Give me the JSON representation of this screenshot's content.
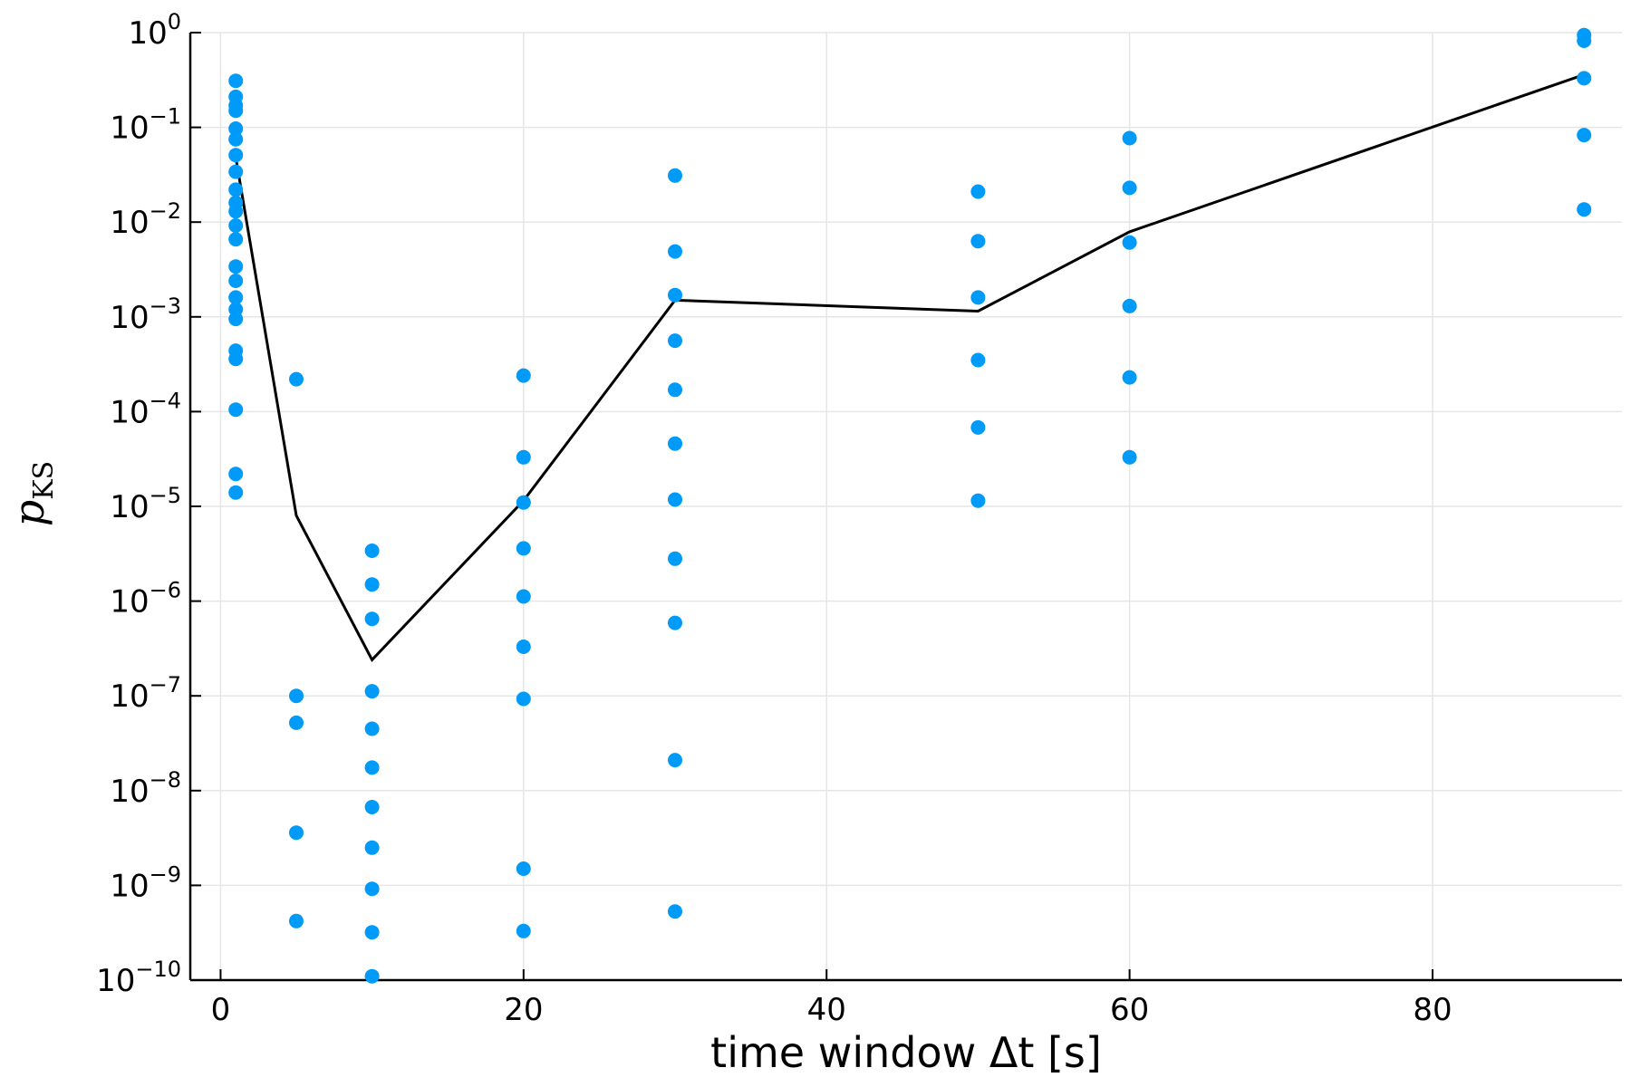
{
  "colors": {
    "points": "#009af9",
    "line": "#000000"
  },
  "chart_data": {
    "type": "scatter",
    "title": "",
    "xlabel": "time window Δt [s]",
    "ylabel_main": "p",
    "ylabel_sub": "KS",
    "xlim": [
      -2,
      92.5
    ],
    "ylim": [
      1e-10,
      1
    ],
    "yscale": "log",
    "grid": true,
    "legend": "none",
    "x_ticks": [
      0,
      20,
      40,
      60,
      80
    ],
    "x_tick_labels": [
      "0",
      "20",
      "40",
      "60",
      "80"
    ],
    "y_ticks": [
      1e-10,
      1e-09,
      1e-08,
      1e-07,
      1e-06,
      1e-05,
      0.0001,
      0.001,
      0.01,
      0.1,
      1
    ],
    "y_tick_base": "10",
    "y_tick_exponents": [
      "−10",
      "−9",
      "−8",
      "−7",
      "−6",
      "−5",
      "−4",
      "−3",
      "−2",
      "−1",
      "0"
    ],
    "series": [
      {
        "type": "scatter",
        "points": [
          [
            1,
            0.31
          ],
          [
            1,
            0.21
          ],
          [
            1,
            0.17
          ],
          [
            1,
            0.15
          ],
          [
            1,
            0.097
          ],
          [
            1,
            0.075
          ],
          [
            1,
            0.051
          ],
          [
            1,
            0.034
          ],
          [
            1,
            0.022
          ],
          [
            1,
            0.016
          ],
          [
            1,
            0.013
          ],
          [
            1,
            0.0092
          ],
          [
            1,
            0.0066
          ],
          [
            1,
            0.0034
          ],
          [
            1,
            0.0024
          ],
          [
            1,
            0.0016
          ],
          [
            1,
            0.0012
          ],
          [
            1,
            0.00095
          ],
          [
            1,
            0.00044
          ],
          [
            1,
            0.00036
          ],
          [
            1,
            0.000105
          ],
          [
            1,
            2.2e-05
          ],
          [
            1,
            1.4e-05
          ],
          [
            5,
            0.00022
          ],
          [
            5,
            1e-07
          ],
          [
            5,
            5.2e-08
          ],
          [
            5,
            3.6e-09
          ],
          [
            5,
            4.2e-10
          ],
          [
            10,
            3.4e-06
          ],
          [
            10,
            1.5e-06
          ],
          [
            10,
            6.5e-07
          ],
          [
            10,
            1.12e-07
          ],
          [
            10,
            4.5e-08
          ],
          [
            10,
            1.75e-08
          ],
          [
            10,
            6.7e-09
          ],
          [
            10,
            2.5e-09
          ],
          [
            10,
            9.2e-10
          ],
          [
            10,
            3.2e-10
          ],
          [
            10,
            1.1e-10
          ],
          [
            20,
            0.00024
          ],
          [
            20,
            3.3e-05
          ],
          [
            20,
            1.1e-05
          ],
          [
            20,
            3.6e-06
          ],
          [
            20,
            1.12e-06
          ],
          [
            20,
            3.3e-07
          ],
          [
            20,
            9.3e-08
          ],
          [
            20,
            1.5e-09
          ],
          [
            20,
            3.3e-10
          ],
          [
            30,
            0.031
          ],
          [
            30,
            0.0049
          ],
          [
            30,
            0.0017
          ],
          [
            30,
            0.00056
          ],
          [
            30,
            0.00017
          ],
          [
            30,
            4.6e-05
          ],
          [
            30,
            1.18e-05
          ],
          [
            30,
            2.8e-06
          ],
          [
            30,
            5.9e-07
          ],
          [
            30,
            2.1e-08
          ],
          [
            30,
            5.3e-10
          ],
          [
            50,
            0.021
          ],
          [
            50,
            0.0063
          ],
          [
            50,
            0.0016
          ],
          [
            50,
            0.00035
          ],
          [
            50,
            6.8e-05
          ],
          [
            50,
            1.15e-05
          ],
          [
            60,
            0.077
          ],
          [
            60,
            0.023
          ],
          [
            60,
            0.0061
          ],
          [
            60,
            0.0013
          ],
          [
            60,
            0.00023
          ],
          [
            60,
            3.3e-05
          ],
          [
            90,
            0.94
          ],
          [
            90,
            0.82
          ],
          [
            90,
            0.33
          ],
          [
            90,
            0.083
          ],
          [
            90,
            0.0136
          ]
        ]
      },
      {
        "type": "line",
        "x": [
          1,
          5,
          10,
          20,
          30,
          50,
          60,
          90
        ],
        "y": [
          0.048,
          8e-06,
          2.4e-07,
          1.15e-05,
          0.0015,
          0.00115,
          0.0079,
          0.36
        ]
      }
    ]
  }
}
